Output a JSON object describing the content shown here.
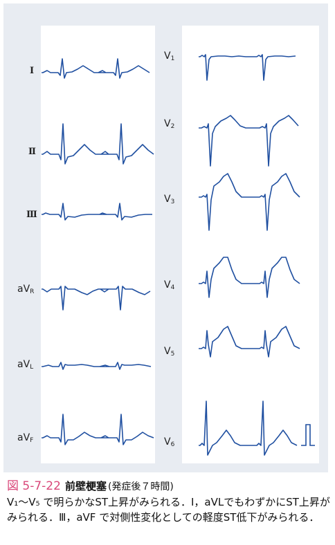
{
  "caption": {
    "figure_number": "図 5-7-22",
    "title": "前壁梗塞",
    "subtitle": "(発症後７時間)",
    "body": "V₁～V₅ で明らかなST上昇がみられる．Ⅰ，aVLでもわずかにST上昇がみられる．Ⅲ，aVF で対側性変化としての軽度ST低下がみられる．"
  },
  "colors": {
    "trace": "#1f4fa0",
    "panel": "#e8ecf2",
    "strip": "#ffffff",
    "caption_accent": "#d9487a"
  },
  "limb_leads": [
    {
      "id": "I",
      "label": "Ⅰ",
      "type": "limb_I"
    },
    {
      "id": "II",
      "label": "Ⅱ",
      "type": "limb_II"
    },
    {
      "id": "III",
      "label": "Ⅲ",
      "type": "limb_III"
    },
    {
      "id": "aVR",
      "label_main": "aV",
      "label_sub": "R",
      "type": "limb_aVR"
    },
    {
      "id": "aVL",
      "label_main": "aV",
      "label_sub": "L",
      "type": "limb_aVL"
    },
    {
      "id": "aVF",
      "label_main": "aV",
      "label_sub": "F",
      "type": "limb_aVF"
    }
  ],
  "chest_leads": [
    {
      "id": "V1",
      "label_main": "V",
      "label_sub": "1",
      "type": "V1"
    },
    {
      "id": "V2",
      "label_main": "V",
      "label_sub": "2",
      "type": "V2"
    },
    {
      "id": "V3",
      "label_main": "V",
      "label_sub": "3",
      "type": "V3"
    },
    {
      "id": "V4",
      "label_main": "V",
      "label_sub": "4",
      "type": "V4"
    },
    {
      "id": "V5",
      "label_main": "V",
      "label_sub": "5",
      "type": "V5"
    },
    {
      "id": "V6",
      "label_main": "V",
      "label_sub": "6",
      "type": "V6"
    }
  ]
}
